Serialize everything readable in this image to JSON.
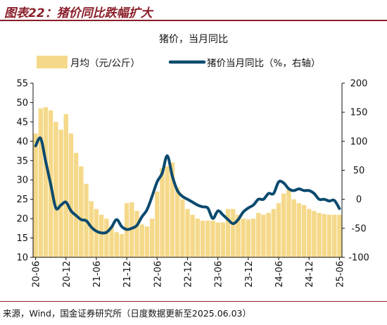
{
  "figure": {
    "title": "图表22：猪价同比跌幅扩大",
    "source": "来源，Wind，国金证券研究所（日度数据更新至2025.06.03）"
  },
  "chart_data": {
    "type": "bar+line",
    "title": "猪价，当月同比",
    "categories": [
      "20-06",
      "20-07",
      "20-08",
      "20-09",
      "20-10",
      "20-11",
      "20-12",
      "21-01",
      "21-02",
      "21-03",
      "21-04",
      "21-05",
      "21-06",
      "21-07",
      "21-08",
      "21-09",
      "21-10",
      "21-11",
      "21-12",
      "22-01",
      "22-02",
      "22-03",
      "22-04",
      "22-05",
      "22-06",
      "22-07",
      "22-08",
      "22-09",
      "22-10",
      "22-11",
      "22-12",
      "23-01",
      "23-02",
      "23-03",
      "23-04",
      "23-05",
      "23-06",
      "23-07",
      "23-08",
      "23-09",
      "23-10",
      "23-11",
      "23-12",
      "24-01",
      "24-02",
      "24-03",
      "24-04",
      "24-05",
      "24-06",
      "24-07",
      "24-08",
      "24-09",
      "24-10",
      "24-11",
      "24-12",
      "25-01",
      "25-02",
      "25-03",
      "25-04",
      "25-05",
      "25-06"
    ],
    "xtick_labels": [
      "20-06",
      "20-12",
      "21-06",
      "21-12",
      "22-06",
      "22-12",
      "23-06",
      "23-12",
      "24-06",
      "24-12",
      "25-06"
    ],
    "series": [
      {
        "name": "月均（元/公斤）",
        "axis": "left",
        "type": "bar",
        "color": "#f5d98a",
        "values": [
          42,
          48.5,
          48.8,
          48,
          45,
          43,
          47,
          42,
          37,
          33.5,
          29,
          24.5,
          22.5,
          21,
          20,
          18,
          16.5,
          16,
          24,
          24.2,
          22,
          18.5,
          18,
          20,
          27,
          33,
          33.5,
          34.5,
          28,
          25,
          22.5,
          21,
          20,
          19.5,
          19.5,
          19.5,
          19,
          19,
          22.5,
          22.5,
          21,
          20,
          19.8,
          20,
          21.5,
          21,
          21.5,
          22.5,
          24,
          26.5,
          27.5,
          25,
          24,
          23.5,
          22.5,
          22,
          21.5,
          21.2,
          21,
          21,
          21
        ]
      },
      {
        "name": "猪价当月同比（%，右轴）",
        "axis": "right",
        "type": "line",
        "color": "#0b4a6e",
        "values": [
          92,
          105,
          65,
          25,
          -15,
          -10,
          -5,
          -20,
          -28,
          -35,
          -37,
          -48,
          -55,
          -58,
          -57,
          -48,
          -35,
          -47,
          -52,
          -50,
          -45,
          -30,
          -18,
          5,
          30,
          45,
          75,
          40,
          15,
          5,
          0,
          -5,
          -10,
          -13,
          -15,
          -33,
          -20,
          -27,
          -35,
          -42,
          -35,
          -22,
          -15,
          -10,
          0,
          0,
          10,
          10,
          30,
          28,
          18,
          15,
          18,
          15,
          15,
          10,
          0,
          0,
          -3,
          -2,
          -16
        ]
      }
    ],
    "y_left": {
      "min": 10,
      "max": 55,
      "ticks": [
        10,
        15,
        20,
        25,
        30,
        35,
        40,
        45,
        50,
        55
      ]
    },
    "y_right": {
      "min": -100,
      "max": 200,
      "ticks": [
        -100,
        -50,
        0,
        50,
        100,
        150,
        200
      ]
    },
    "legend": "top",
    "grid": false
  }
}
